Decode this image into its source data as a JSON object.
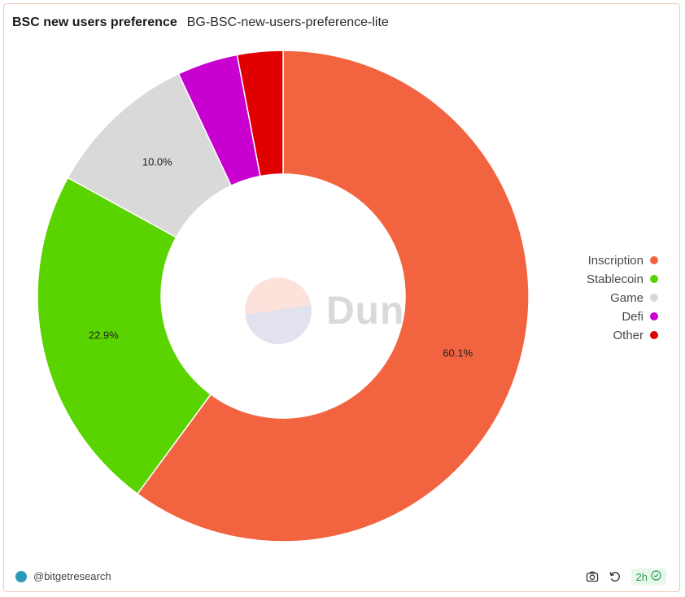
{
  "header": {
    "title": "BSC new users preference",
    "subtitle": "BG-BSC-new-users-preference-lite"
  },
  "watermark": {
    "text": "Dune"
  },
  "footer": {
    "author": "@bitgetresearch",
    "refresh_label": "2h"
  },
  "icons": {
    "camera": "camera-icon",
    "refresh": "refresh-icon",
    "check": "check-circle-icon",
    "avatar": "avatar"
  },
  "chart_data": {
    "type": "pie",
    "variant": "donut",
    "categories": [
      "Inscription",
      "Stablecoin",
      "Game",
      "Defi",
      "Other"
    ],
    "values": [
      60.1,
      22.9,
      10.0,
      4.0,
      3.0
    ],
    "colors": [
      "#f26440",
      "#5ad400",
      "#d9d9d9",
      "#c800d0",
      "#e00000"
    ],
    "data_labels": [
      "60.1%",
      "22.9%",
      "10.0%",
      "",
      ""
    ],
    "legend_position": "right",
    "start_angle_deg": 0,
    "direction": "clockwise"
  }
}
